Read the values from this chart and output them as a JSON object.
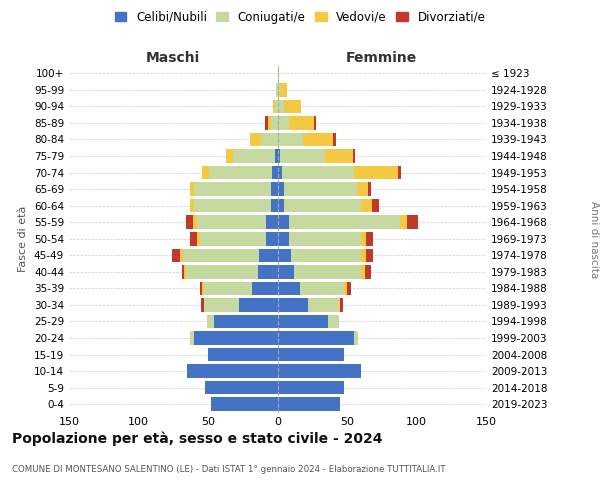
{
  "age_groups": [
    "0-4",
    "5-9",
    "10-14",
    "15-19",
    "20-24",
    "25-29",
    "30-34",
    "35-39",
    "40-44",
    "45-49",
    "50-54",
    "55-59",
    "60-64",
    "65-69",
    "70-74",
    "75-79",
    "80-84",
    "85-89",
    "90-94",
    "95-99",
    "100+"
  ],
  "birth_years": [
    "2019-2023",
    "2014-2018",
    "2009-2013",
    "2004-2008",
    "1999-2003",
    "1994-1998",
    "1989-1993",
    "1984-1988",
    "1979-1983",
    "1974-1978",
    "1969-1973",
    "1964-1968",
    "1959-1963",
    "1954-1958",
    "1949-1953",
    "1944-1948",
    "1939-1943",
    "1934-1938",
    "1929-1933",
    "1924-1928",
    "≤ 1923"
  ],
  "colors": {
    "celibe": "#4472c4",
    "coniugato": "#c5d9a0",
    "vedovo": "#f5c842",
    "divorziato": "#c0392b"
  },
  "maschi": {
    "celibe": [
      48,
      52,
      65,
      50,
      60,
      46,
      28,
      18,
      14,
      13,
      8,
      8,
      5,
      5,
      4,
      2,
      0,
      0,
      0,
      0,
      0
    ],
    "coniugato": [
      0,
      0,
      0,
      0,
      3,
      5,
      25,
      35,
      52,
      55,
      48,
      50,
      55,
      55,
      45,
      30,
      12,
      5,
      2,
      1,
      0
    ],
    "vedovo": [
      0,
      0,
      0,
      0,
      0,
      0,
      0,
      1,
      1,
      2,
      2,
      3,
      3,
      3,
      5,
      5,
      8,
      2,
      1,
      0,
      0
    ],
    "divorziato": [
      0,
      0,
      0,
      0,
      0,
      0,
      2,
      2,
      2,
      6,
      5,
      5,
      0,
      0,
      0,
      0,
      0,
      2,
      0,
      0,
      0
    ]
  },
  "femmine": {
    "celibe": [
      45,
      48,
      60,
      48,
      55,
      36,
      22,
      16,
      12,
      10,
      8,
      8,
      5,
      5,
      3,
      2,
      0,
      0,
      0,
      0,
      0
    ],
    "coniugato": [
      0,
      0,
      0,
      0,
      3,
      8,
      22,
      32,
      48,
      50,
      52,
      80,
      55,
      52,
      52,
      32,
      18,
      8,
      5,
      2,
      0
    ],
    "vedovo": [
      0,
      0,
      0,
      0,
      0,
      0,
      1,
      2,
      3,
      4,
      4,
      5,
      8,
      8,
      32,
      20,
      22,
      18,
      12,
      5,
      1
    ],
    "divorziato": [
      0,
      0,
      0,
      0,
      0,
      0,
      2,
      3,
      4,
      5,
      5,
      8,
      5,
      2,
      2,
      2,
      2,
      2,
      0,
      0,
      0
    ]
  },
  "title": "Popolazione per età, sesso e stato civile - 2024",
  "subtitle": "COMUNE DI MONTESANO SALENTINO (LE) - Dati ISTAT 1° gennaio 2024 - Elaborazione TUTTITALIA.IT",
  "xlabel_left": "Maschi",
  "xlabel_right": "Femmine",
  "ylabel_left": "Fasce di età",
  "ylabel_right": "Anni di nascita",
  "xlim": 150,
  "legend_labels": [
    "Celibi/Nubili",
    "Coniugati/e",
    "Vedovi/e",
    "Divorziati/e"
  ],
  "bg_color": "#ffffff",
  "grid_color": "#cccccc"
}
